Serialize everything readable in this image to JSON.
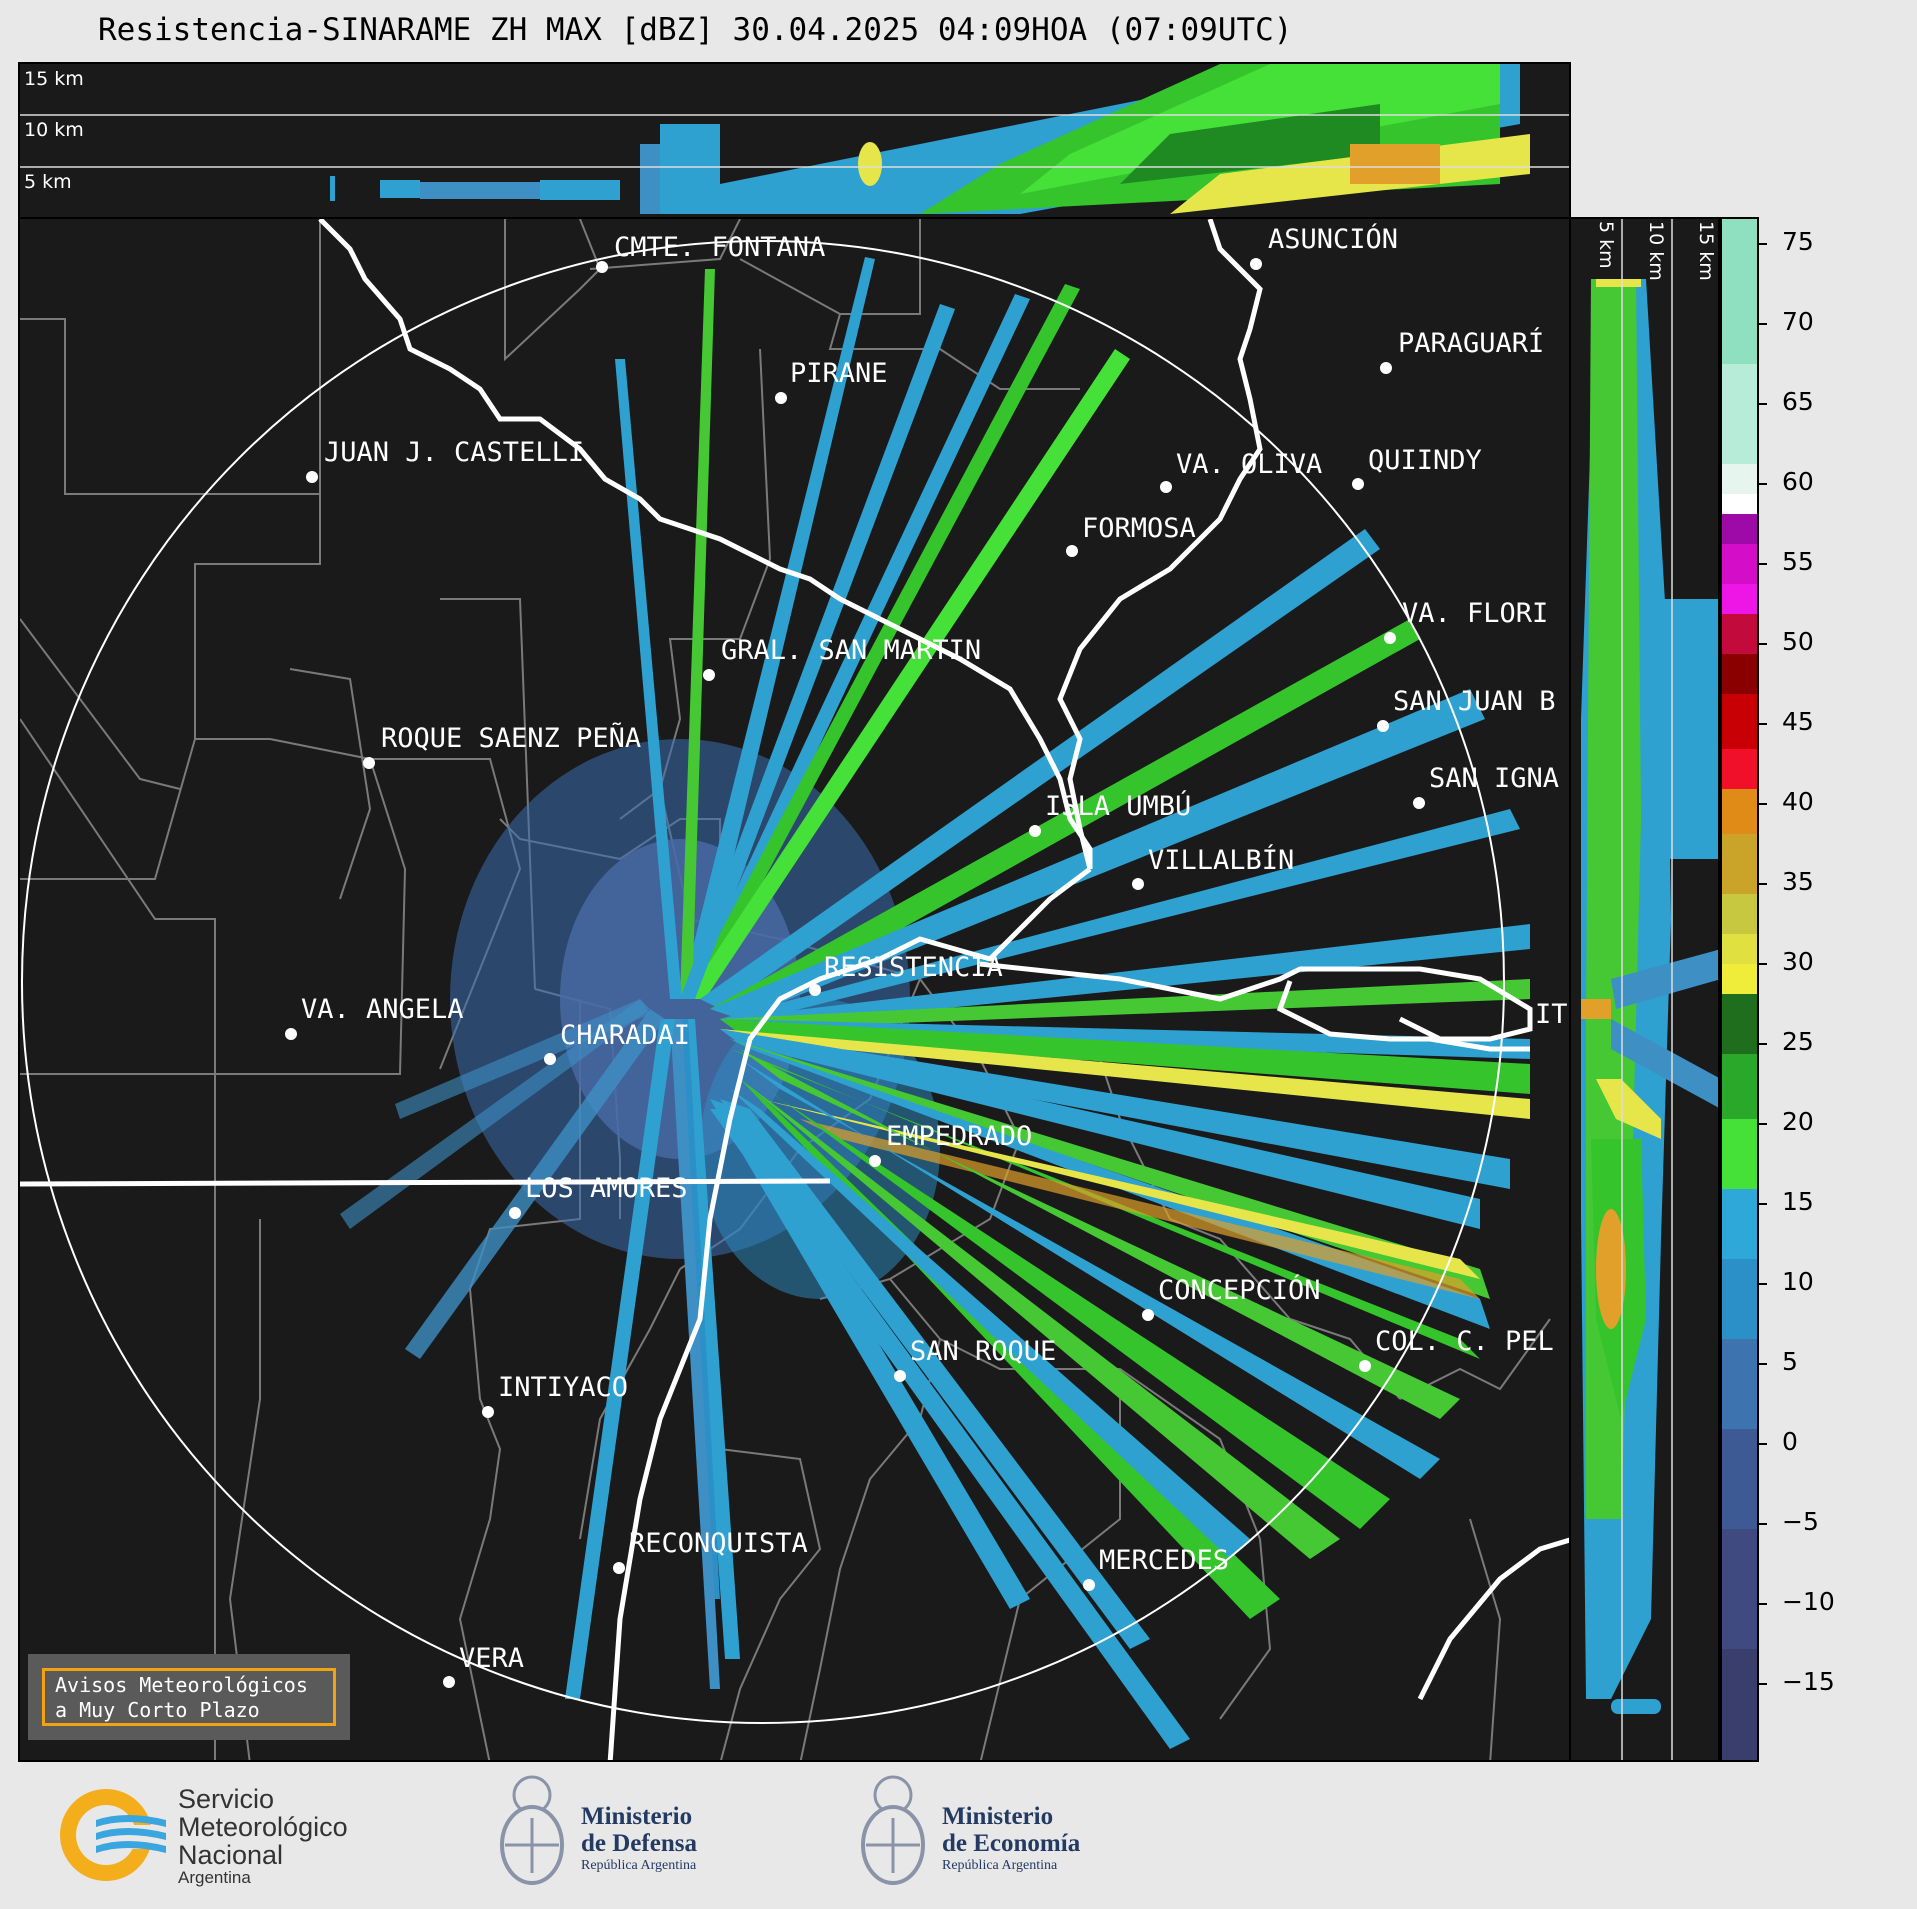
{
  "title": "Resistencia-SINARAME ZH MAX [dBZ] 30.04.2025 04:09HOA (07:09UTC)",
  "top_panel": {
    "height_labels": [
      "15 km",
      "10 km",
      "5 km"
    ]
  },
  "side_panel": {
    "height_labels": [
      "5 km",
      "10 km",
      "15 km"
    ]
  },
  "colorbar": {
    "ticks": [
      "75",
      "70",
      "65",
      "60",
      "55",
      "50",
      "45",
      "40",
      "35",
      "30",
      "25",
      "20",
      "15",
      "10",
      "5",
      "0",
      "−5",
      "−10",
      "−15"
    ],
    "range": [
      -20,
      77
    ]
  },
  "map": {
    "radar_site": "RESISTENCIA",
    "cities": [
      "CMTE. FONTANA",
      "ASUNCIÓN",
      "PIRANE",
      "PARAGUARÍ",
      "JUAN J. CASTELLI",
      "VA. OLIVA",
      "QUIINDY",
      "FORMOSA",
      "VA. FLORI",
      "GRAL. SAN MARTIN",
      "SAN JUAN B",
      "ROQUE SAENZ PEÑA",
      "SAN IGNA",
      "ISLA UMBÚ",
      "VILLALBÍN",
      "RESISTENCIA",
      "VA. ANGELA",
      "CHARADAI",
      "IT",
      "EMPEDRADO",
      "LOS AMORES",
      "CONCEPCIÓN",
      "COL. C. PEL",
      "SAN ROQUE",
      "INTIYACO",
      "RECONQUISTA",
      "MERCEDES",
      "VERA"
    ]
  },
  "avisos": {
    "line1": "Avisos Meteorológicos",
    "line2": "a Muy Corto Plazo"
  },
  "logos": {
    "smn": {
      "line1": "Servicio",
      "line2": "Meteorológico",
      "line3": "Nacional",
      "line4": "Argentina"
    },
    "defensa": {
      "line1": "Ministerio",
      "line2": "de Defensa",
      "line3": "República Argentina"
    },
    "economia": {
      "line1": "Ministerio",
      "line2": "de Economía",
      "line3": "República Argentina"
    }
  },
  "colors": {
    "background": "#1a1a1a",
    "ring": "#ffffff",
    "rivers": "#ffffff",
    "borders": "#7a7a7a",
    "avisos_border": "#f2a30f"
  }
}
